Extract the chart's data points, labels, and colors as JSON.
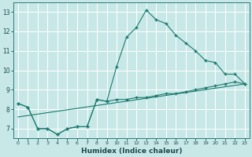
{
  "xlabel": "Humidex (Indice chaleur)",
  "xlim": [
    -0.5,
    23.5
  ],
  "ylim": [
    6.5,
    13.5
  ],
  "yticks": [
    7,
    8,
    9,
    10,
    11,
    12,
    13
  ],
  "xticks": [
    0,
    1,
    2,
    3,
    4,
    5,
    6,
    7,
    8,
    9,
    10,
    11,
    12,
    13,
    14,
    15,
    16,
    17,
    18,
    19,
    20,
    21,
    22,
    23
  ],
  "bg_color": "#c8e8e8",
  "grid_color": "#ffffff",
  "line_color": "#1a7a6e",
  "line1_x": [
    0,
    1,
    2,
    3,
    4,
    5,
    6,
    7,
    8,
    9,
    10,
    11,
    12,
    13,
    14,
    15,
    16,
    17,
    18,
    19,
    20,
    21,
    22,
    23
  ],
  "line1_y": [
    8.3,
    8.1,
    7.0,
    7.0,
    6.7,
    7.0,
    7.1,
    7.1,
    8.5,
    8.4,
    10.2,
    11.7,
    12.2,
    13.1,
    12.6,
    12.4,
    11.8,
    11.4,
    11.0,
    10.5,
    10.4,
    9.8,
    9.8,
    9.3
  ],
  "line2_x": [
    0,
    1,
    2,
    3,
    4,
    5,
    6,
    7,
    8,
    9,
    10,
    11,
    12,
    13,
    14,
    15,
    16,
    17,
    18,
    19,
    20,
    21,
    22,
    23
  ],
  "line2_y": [
    8.3,
    8.1,
    7.0,
    7.0,
    6.7,
    7.0,
    7.1,
    7.1,
    8.5,
    8.4,
    8.5,
    8.5,
    8.6,
    8.6,
    8.7,
    8.8,
    8.8,
    8.9,
    9.0,
    9.1,
    9.2,
    9.3,
    9.4,
    9.3
  ],
  "line3_x": [
    0,
    23
  ],
  "line3_y": [
    7.6,
    9.3
  ]
}
